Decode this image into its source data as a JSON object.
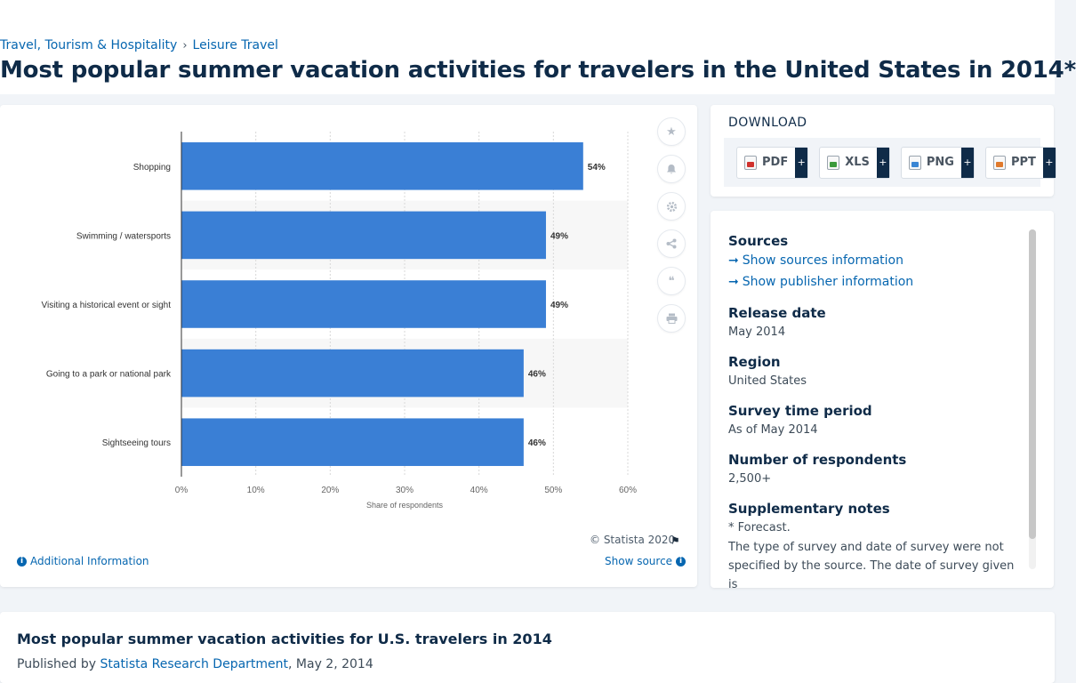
{
  "breadcrumb": {
    "items": [
      "Travel, Tourism & Hospitality",
      "Leisure Travel"
    ]
  },
  "page_title": "Most popular summer vacation activities for travelers in the United States in 2014*",
  "chart": {
    "copyright": "© Statista 2020",
    "additional_info": "Additional Information",
    "show_source": "Show source"
  },
  "chart_data": {
    "type": "bar",
    "orientation": "horizontal",
    "categories": [
      "Shopping",
      "Swimming / watersports",
      "Visiting a historical event or sight",
      "Going to a park or national park",
      "Sightseeing tours"
    ],
    "values": [
      54,
      49,
      49,
      46,
      46
    ],
    "value_labels": [
      "54%",
      "49%",
      "49%",
      "46%",
      "46%"
    ],
    "xlabel": "Share of respondents",
    "xlim": [
      0,
      60
    ],
    "ticks": [
      "0%",
      "10%",
      "20%",
      "30%",
      "40%",
      "50%",
      "60%"
    ],
    "bar_color": "#3a7fd5",
    "grid": true
  },
  "download": {
    "title": "DOWNLOAD",
    "buttons": [
      {
        "label": "PDF",
        "plus": "+"
      },
      {
        "label": "XLS",
        "plus": "+"
      },
      {
        "label": "PNG",
        "plus": "+"
      },
      {
        "label": "PPT",
        "plus": "+"
      }
    ]
  },
  "details": {
    "sources_heading": "Sources",
    "show_sources": "Show sources information",
    "show_publisher": "Show publisher information",
    "release_date_heading": "Release date",
    "release_date": "May 2014",
    "region_heading": "Region",
    "region": "United States",
    "survey_period_heading": "Survey time period",
    "survey_period": "As of May 2014",
    "respondents_heading": "Number of respondents",
    "respondents": "2,500+",
    "notes_heading": "Supplementary notes",
    "notes_line1": "* Forecast.",
    "notes_line2": "The type of survey and date of survey were not specified by the source. The date of survey given is"
  },
  "bottom": {
    "title": "Most popular summer vacation activities for U.S. travelers in 2014",
    "published_prefix": "Published by",
    "author": "Statista Research Department",
    "date": ", May 2, 2014"
  }
}
